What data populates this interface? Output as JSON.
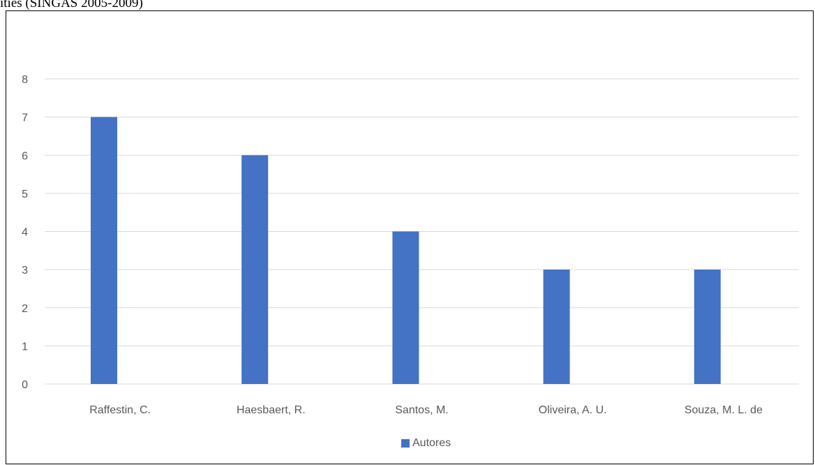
{
  "caption": "ities (SINGAS 2005-2009)",
  "colors": {
    "bar": "#4472c4",
    "grid": "#d9d9d9",
    "text": "#595959"
  },
  "chart_data": {
    "type": "bar",
    "categories": [
      "Raffestin, C.",
      "Haesbaert, R.",
      "Santos, M.",
      "Oliveira, A. U.",
      "Souza, M. L. de"
    ],
    "series": [
      {
        "name": "Autores",
        "values": [
          7,
          6,
          4,
          3,
          3
        ]
      }
    ],
    "ylim": [
      0,
      8
    ],
    "yticks": [
      0,
      1,
      2,
      3,
      4,
      5,
      6,
      7,
      8
    ],
    "grid": true,
    "legend": "bottom-center"
  }
}
